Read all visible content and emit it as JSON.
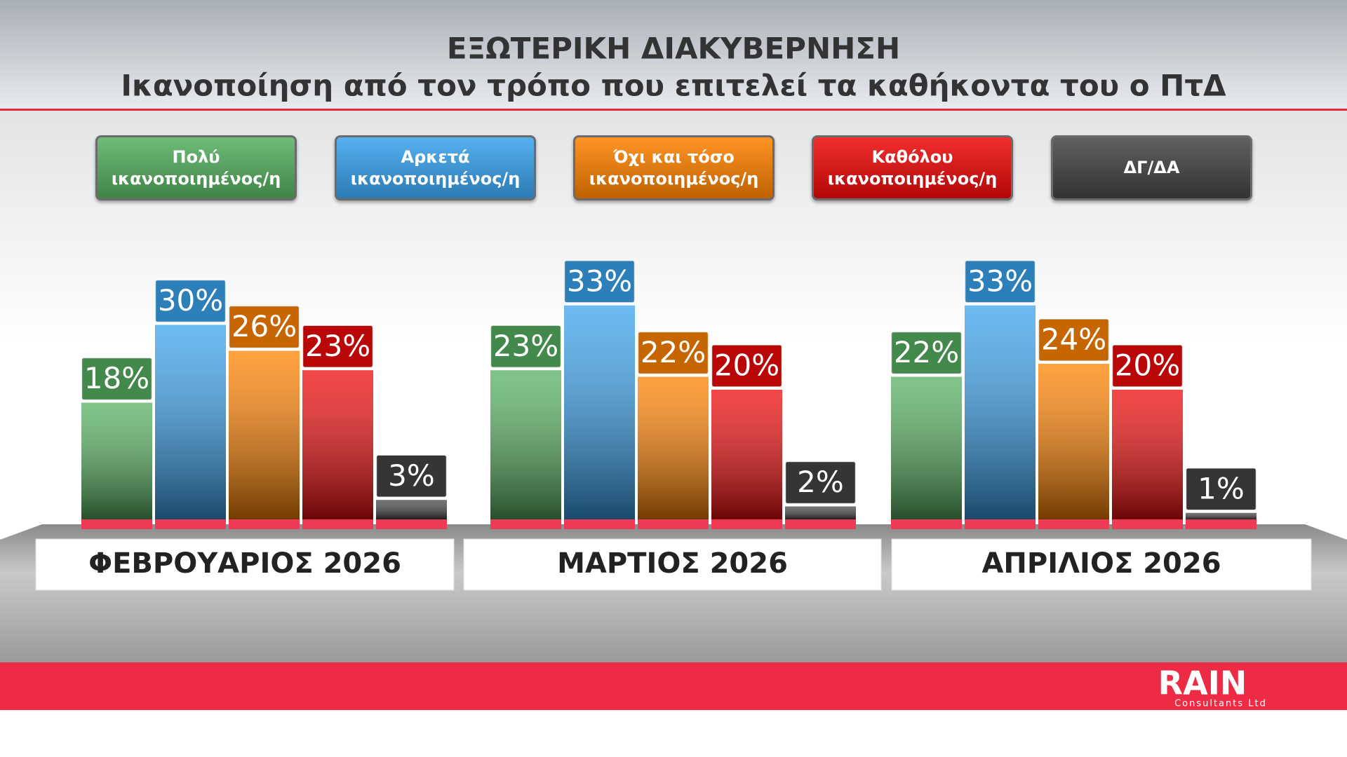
{
  "chart_data": {
    "type": "bar",
    "title": "ΕΞΩΤΕΡΙΚΗ ΔΙΑΚΥΒΕΡΝΗΣΗ",
    "subtitle": "Ικανοποίηση από τον τρόπο που επιτελεί τα καθήκοντα του ο ΠτΔ",
    "categories": [
      "ΦΕΒΡΟΥΑΡΙΟΣ 2026",
      "ΜΑΡΤΙΟΣ 2026",
      "ΑΠΡΙΛΙΟΣ 2026"
    ],
    "series": [
      {
        "name": "Πολύ ικανοποιημένος/η",
        "color": "#56b060",
        "values": [
          18,
          23,
          22
        ],
        "value_labels": [
          "18%",
          "23%",
          "22%"
        ]
      },
      {
        "name": "Αρκετά ικανοποιημένος/η",
        "color": "#3aa3ee",
        "values": [
          30,
          33,
          33
        ],
        "value_labels": [
          "30%",
          "33%",
          "33%"
        ]
      },
      {
        "name": "Όχι και τόσο ικανοποιημένος/η",
        "color": "#ff8200",
        "values": [
          26,
          22,
          24
        ],
        "value_labels": [
          "26%",
          "22%",
          "24%"
        ]
      },
      {
        "name": "Καθόλου ικανοποιημένος/η",
        "color": "#ee0a0a",
        "values": [
          23,
          20,
          20
        ],
        "value_labels": [
          "23%",
          "20%",
          "20%"
        ]
      },
      {
        "name": "ΔΓ/ΔΑ",
        "color": "#444444",
        "values": [
          3,
          2,
          1
        ],
        "value_labels": [
          "3%",
          "2%",
          "1%"
        ]
      }
    ],
    "logo": {
      "name": "RAIN",
      "subtitle": "Consultants Ltd"
    }
  }
}
